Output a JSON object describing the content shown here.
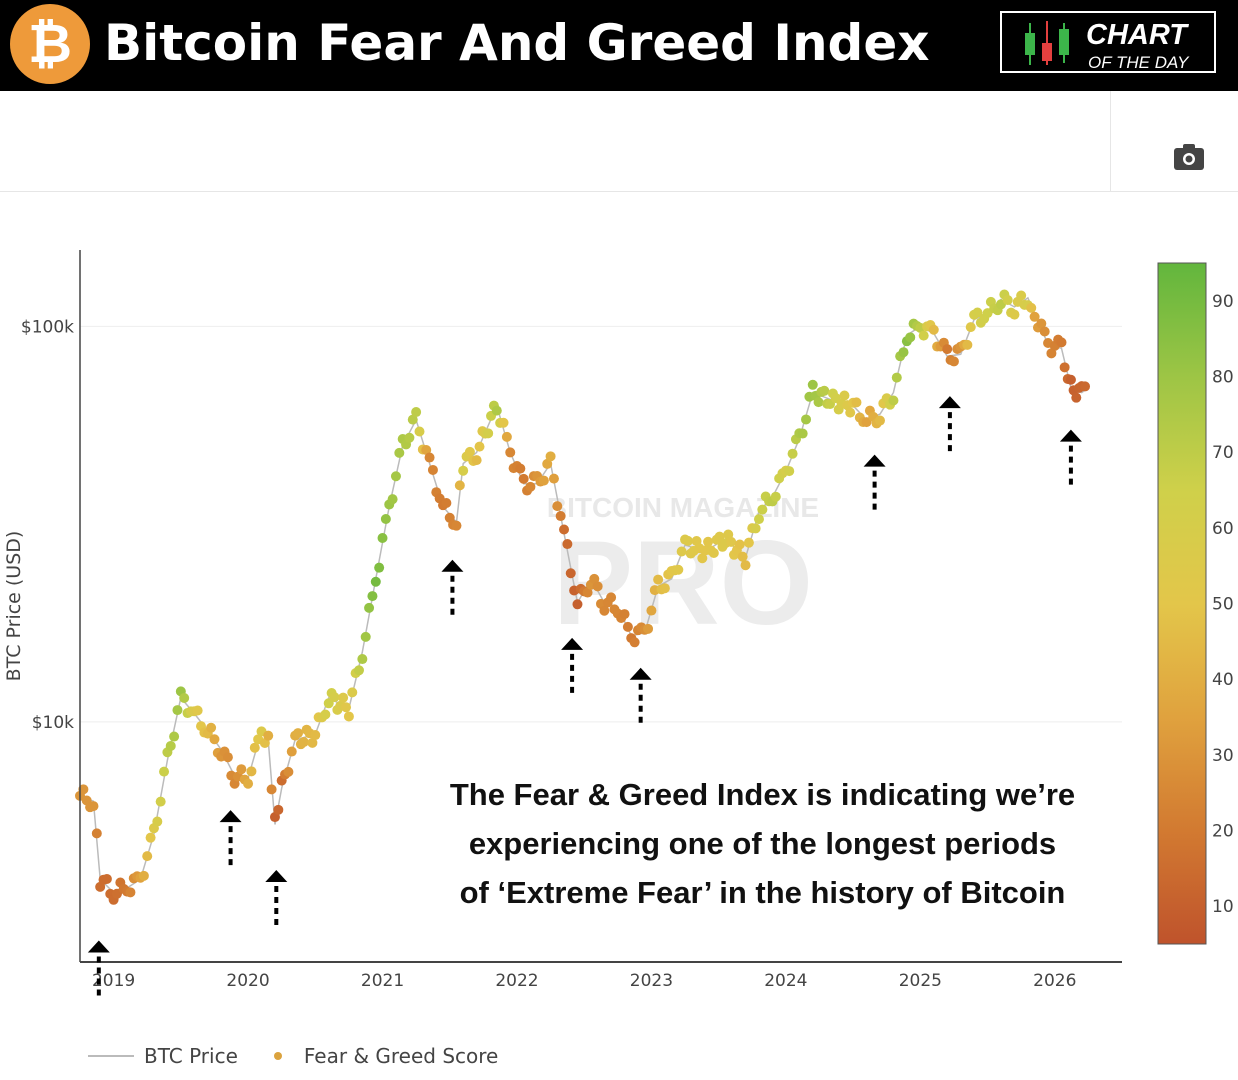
{
  "header": {
    "title": "Bitcoin Fear And Greed Index",
    "logo_glyph": "₿",
    "badge_line1": "CHART",
    "badge_line2": "OF THE DAY",
    "accent": "#ee9a3a"
  },
  "toolbar": {
    "icon": "camera-icon"
  },
  "annotation": {
    "lines": [
      "The Fear & Greed Index is indicating we’re",
      "experiencing one of the longest periods",
      "of ‘Extreme Fear’ in the history of Bitcoin"
    ]
  },
  "watermark": {
    "line1": "BITCOIN MAGAZINE",
    "line2": "PRO"
  },
  "legend": {
    "price": "BTC Price",
    "score": "Fear & Greed Score"
  },
  "chart_data": {
    "type": "scatter",
    "ylabel": "BTC Price (USD)",
    "yscale": "log",
    "ylim": [
      2470,
      156000
    ],
    "xlim": [
      2018.75,
      2026.5
    ],
    "yticks": [
      {
        "value": 10000,
        "label": "$10k"
      },
      {
        "value": 100000,
        "label": "$100k"
      }
    ],
    "xticks": [
      {
        "value": 2019,
        "label": "2019"
      },
      {
        "value": 2020,
        "label": "2020"
      },
      {
        "value": 2021,
        "label": "2021"
      },
      {
        "value": 2022,
        "label": "2022"
      },
      {
        "value": 2023,
        "label": "2023"
      },
      {
        "value": 2024,
        "label": "2024"
      },
      {
        "value": 2025,
        "label": "2025"
      },
      {
        "value": 2026,
        "label": "2026"
      }
    ],
    "colorbar": {
      "ticks": [
        10,
        20,
        30,
        40,
        50,
        60,
        70,
        80,
        90
      ],
      "range": [
        5,
        95
      ],
      "colors": [
        "#bf532c",
        "#d27a31",
        "#e0a23e",
        "#e3c64a",
        "#cfd04a",
        "#9dc545",
        "#62b63d"
      ]
    },
    "grid": true,
    "legend_position": "bottom-left",
    "points": [
      [
        2018.75,
        6500,
        30
      ],
      [
        2018.85,
        6300,
        30
      ],
      [
        2018.9,
        4000,
        15
      ],
      [
        2019.0,
        3700,
        15
      ],
      [
        2019.1,
        3800,
        20
      ],
      [
        2019.2,
        4000,
        35
      ],
      [
        2019.3,
        5200,
        55
      ],
      [
        2019.4,
        8000,
        70
      ],
      [
        2019.5,
        11500,
        80
      ],
      [
        2019.6,
        10500,
        55
      ],
      [
        2019.7,
        9500,
        45
      ],
      [
        2019.8,
        8500,
        30
      ],
      [
        2019.9,
        7300,
        25
      ],
      [
        2020.0,
        7200,
        40
      ],
      [
        2020.1,
        9500,
        55
      ],
      [
        2020.15,
        9000,
        40
      ],
      [
        2020.2,
        5500,
        10
      ],
      [
        2020.25,
        6800,
        15
      ],
      [
        2020.35,
        9000,
        40
      ],
      [
        2020.5,
        9300,
        45
      ],
      [
        2020.6,
        11500,
        65
      ],
      [
        2020.75,
        10800,
        50
      ],
      [
        2020.85,
        15000,
        75
      ],
      [
        2020.95,
        23000,
        90
      ],
      [
        2021.05,
        35000,
        80
      ],
      [
        2021.15,
        50000,
        75
      ],
      [
        2021.25,
        58000,
        70
      ],
      [
        2021.35,
        45000,
        25
      ],
      [
        2021.45,
        35000,
        20
      ],
      [
        2021.55,
        32000,
        25
      ],
      [
        2021.6,
        45000,
        60
      ],
      [
        2021.7,
        48000,
        45
      ],
      [
        2021.85,
        63000,
        75
      ],
      [
        2021.95,
        48000,
        25
      ],
      [
        2022.05,
        40000,
        20
      ],
      [
        2022.15,
        40000,
        30
      ],
      [
        2022.25,
        45000,
        40
      ],
      [
        2022.35,
        30000,
        15
      ],
      [
        2022.45,
        20000,
        10
      ],
      [
        2022.55,
        23000,
        30
      ],
      [
        2022.65,
        20000,
        25
      ],
      [
        2022.75,
        19500,
        25
      ],
      [
        2022.85,
        16500,
        20
      ],
      [
        2022.95,
        16800,
        28
      ],
      [
        2023.05,
        22000,
        45
      ],
      [
        2023.15,
        23000,
        50
      ],
      [
        2023.25,
        28000,
        55
      ],
      [
        2023.4,
        27000,
        50
      ],
      [
        2023.55,
        29000,
        55
      ],
      [
        2023.7,
        26000,
        45
      ],
      [
        2023.8,
        34000,
        65
      ],
      [
        2023.9,
        37000,
        70
      ],
      [
        2024.0,
        43000,
        60
      ],
      [
        2024.1,
        52000,
        75
      ],
      [
        2024.2,
        68000,
        80
      ],
      [
        2024.35,
        65000,
        65
      ],
      [
        2024.5,
        63000,
        50
      ],
      [
        2024.6,
        58000,
        35
      ],
      [
        2024.7,
        60000,
        45
      ],
      [
        2024.8,
        68000,
        70
      ],
      [
        2024.9,
        95000,
        85
      ],
      [
        2025.0,
        100000,
        70
      ],
      [
        2025.1,
        96000,
        45
      ],
      [
        2025.2,
        84000,
        20
      ],
      [
        2025.3,
        85000,
        30
      ],
      [
        2025.4,
        104000,
        60
      ],
      [
        2025.5,
        108000,
        65
      ],
      [
        2025.6,
        117000,
        70
      ],
      [
        2025.7,
        112000,
        55
      ],
      [
        2025.8,
        118000,
        60
      ],
      [
        2025.85,
        108000,
        35
      ],
      [
        2025.95,
        90000,
        25
      ],
      [
        2026.05,
        88000,
        20
      ],
      [
        2026.12,
        70000,
        10
      ],
      [
        2026.2,
        68000,
        12
      ],
      [
        2026.25,
        70000,
        15
      ]
    ],
    "arrows": [
      [
        2018.89,
        2800
      ],
      [
        2019.87,
        5980
      ],
      [
        2020.21,
        4220
      ],
      [
        2021.52,
        25700
      ],
      [
        2022.41,
        16300
      ],
      [
        2022.92,
        13700
      ],
      [
        2024.66,
        47400
      ],
      [
        2025.22,
        66600
      ],
      [
        2026.12,
        54800
      ]
    ]
  }
}
